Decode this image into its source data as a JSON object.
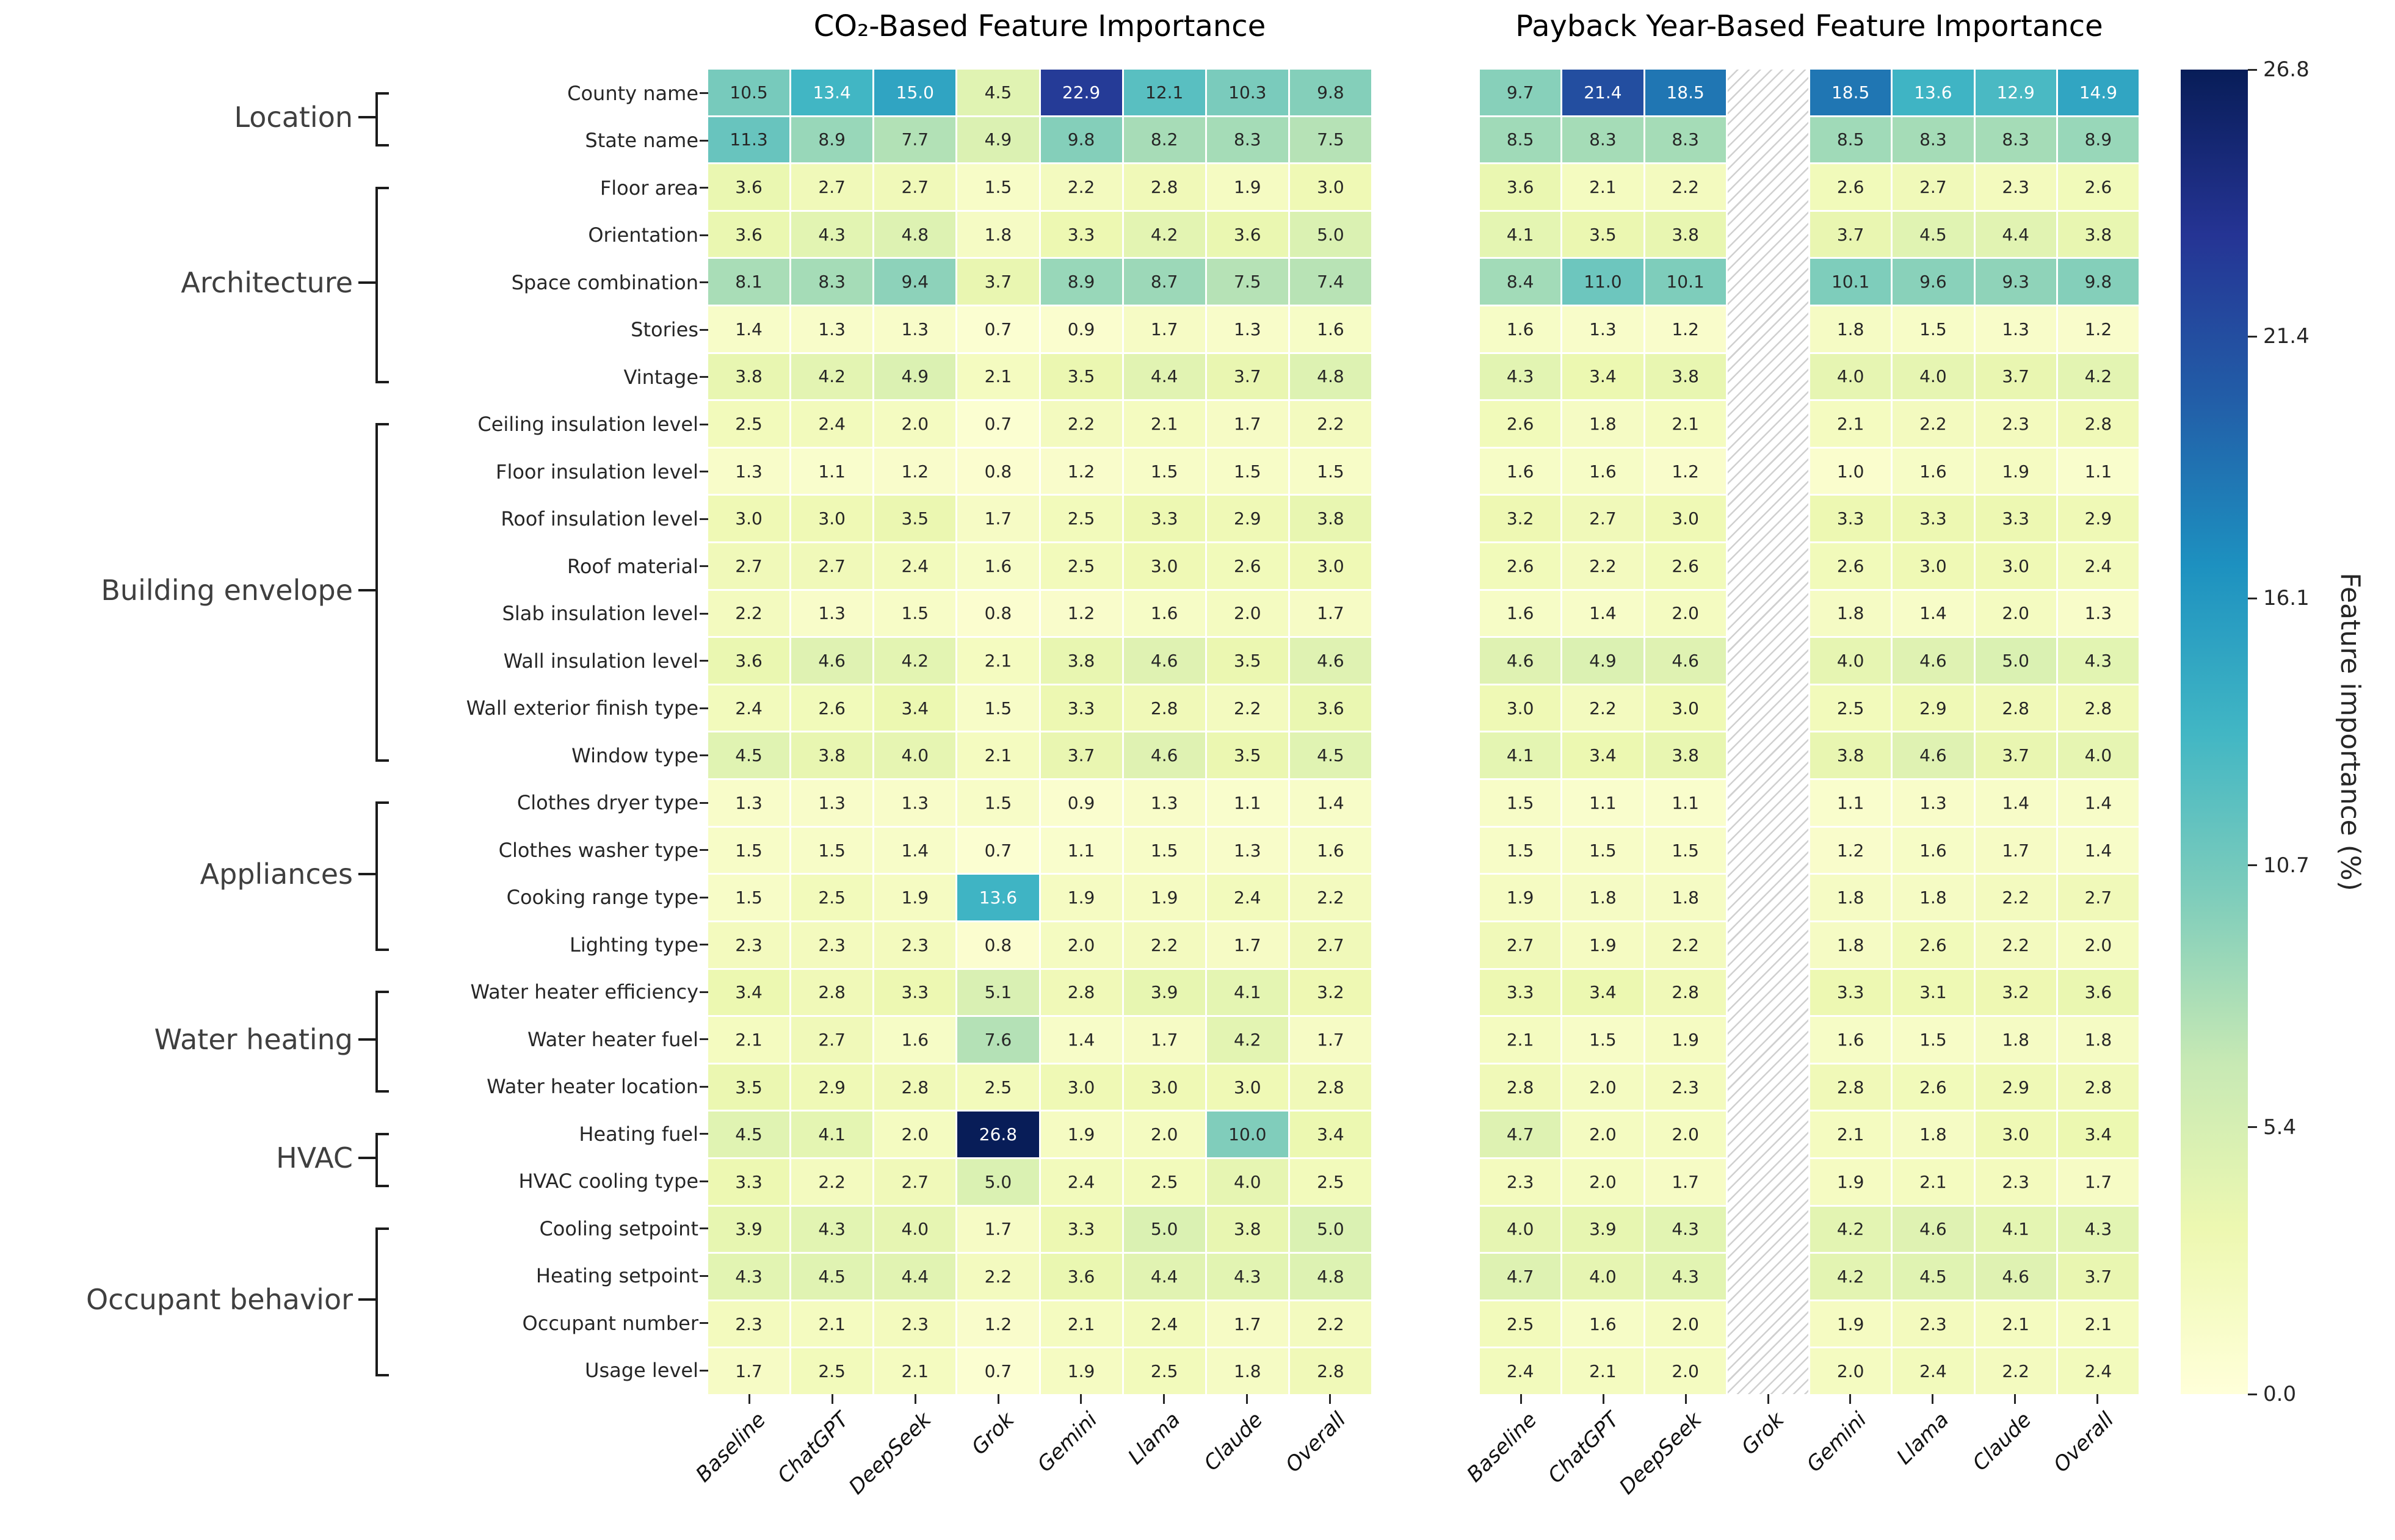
{
  "figure": {
    "background": "#ffffff"
  },
  "columns": [
    "Baseline",
    "ChatGPT",
    "DeepSeek",
    "Grok",
    "Gemini",
    "Llama",
    "Claude",
    "Overall"
  ],
  "rows": [
    "County name",
    "State name",
    "Floor area",
    "Orientation",
    "Space combination",
    "Stories",
    "Vintage",
    "Ceiling insulation level",
    "Floor insulation level",
    "Roof insulation level",
    "Roof material",
    "Slab insulation level",
    "Wall insulation level",
    "Wall exterior finish type",
    "Window type",
    "Clothes dryer type",
    "Clothes washer type",
    "Cooking range type",
    "Lighting type",
    "Water heater efficiency",
    "Water heater fuel",
    "Water heater location",
    "Heating fuel",
    "HVAC cooling type",
    "Cooling setpoint",
    "Heating setpoint",
    "Occupant number",
    "Usage level"
  ],
  "groups": [
    {
      "label": "Location",
      "start": 0,
      "end": 1
    },
    {
      "label": "Architecture",
      "start": 2,
      "end": 6
    },
    {
      "label": "Building envelope",
      "start": 7,
      "end": 14
    },
    {
      "label": "Appliances",
      "start": 15,
      "end": 18
    },
    {
      "label": "Water heating",
      "start": 19,
      "end": 21
    },
    {
      "label": "HVAC",
      "start": 22,
      "end": 23
    },
    {
      "label": "Occupant behavior",
      "start": 24,
      "end": 27
    }
  ],
  "chart_data": [
    {
      "type": "heatmap",
      "title": "CO₂-Based Feature Importance",
      "x_labels": [
        "Baseline",
        "ChatGPT",
        "DeepSeek",
        "Grok",
        "Gemini",
        "Llama",
        "Claude",
        "Overall"
      ],
      "y_labels_shared": true,
      "values": [
        [
          10.5,
          13.4,
          15.0,
          4.5,
          22.9,
          12.1,
          10.3,
          9.8
        ],
        [
          11.3,
          8.9,
          7.7,
          4.9,
          9.8,
          8.2,
          8.3,
          7.5
        ],
        [
          3.6,
          2.7,
          2.7,
          1.5,
          2.2,
          2.8,
          1.9,
          3.0
        ],
        [
          3.6,
          4.3,
          4.8,
          1.8,
          3.3,
          4.2,
          3.6,
          5.0
        ],
        [
          8.1,
          8.3,
          9.4,
          3.7,
          8.9,
          8.7,
          7.5,
          7.4
        ],
        [
          1.4,
          1.3,
          1.3,
          0.7,
          0.9,
          1.7,
          1.3,
          1.6
        ],
        [
          3.8,
          4.2,
          4.9,
          2.1,
          3.5,
          4.4,
          3.7,
          4.8
        ],
        [
          2.5,
          2.4,
          2.0,
          0.7,
          2.2,
          2.1,
          1.7,
          2.2
        ],
        [
          1.3,
          1.1,
          1.2,
          0.8,
          1.2,
          1.5,
          1.5,
          1.5
        ],
        [
          3.0,
          3.0,
          3.5,
          1.7,
          2.5,
          3.3,
          2.9,
          3.8
        ],
        [
          2.7,
          2.7,
          2.4,
          1.6,
          2.5,
          3.0,
          2.6,
          3.0
        ],
        [
          2.2,
          1.3,
          1.5,
          0.8,
          1.2,
          1.6,
          2.0,
          1.7
        ],
        [
          3.6,
          4.6,
          4.2,
          2.1,
          3.8,
          4.6,
          3.5,
          4.6
        ],
        [
          2.4,
          2.6,
          3.4,
          1.5,
          3.3,
          2.8,
          2.2,
          3.6
        ],
        [
          4.5,
          3.8,
          4.0,
          2.1,
          3.7,
          4.6,
          3.5,
          4.5
        ],
        [
          1.3,
          1.3,
          1.3,
          1.5,
          0.9,
          1.3,
          1.1,
          1.4
        ],
        [
          1.5,
          1.5,
          1.4,
          0.7,
          1.1,
          1.5,
          1.3,
          1.6
        ],
        [
          1.5,
          2.5,
          1.9,
          13.6,
          1.9,
          1.9,
          2.4,
          2.2
        ],
        [
          2.3,
          2.3,
          2.3,
          0.8,
          2.0,
          2.2,
          1.7,
          2.7
        ],
        [
          3.4,
          2.8,
          3.3,
          5.1,
          2.8,
          3.9,
          4.1,
          3.2
        ],
        [
          2.1,
          2.7,
          1.6,
          7.6,
          1.4,
          1.7,
          4.2,
          1.7
        ],
        [
          3.5,
          2.9,
          2.8,
          2.5,
          3.0,
          3.0,
          3.0,
          2.8
        ],
        [
          4.5,
          4.1,
          2.0,
          26.8,
          1.9,
          2.0,
          10.0,
          3.4
        ],
        [
          3.3,
          2.2,
          2.7,
          5.0,
          2.4,
          2.5,
          4.0,
          2.5
        ],
        [
          3.9,
          4.3,
          4.0,
          1.7,
          3.3,
          5.0,
          3.8,
          5.0
        ],
        [
          4.3,
          4.5,
          4.4,
          2.2,
          3.6,
          4.4,
          4.3,
          4.8
        ],
        [
          2.3,
          2.1,
          2.3,
          1.2,
          2.1,
          2.4,
          1.7,
          2.2
        ],
        [
          1.7,
          2.5,
          2.1,
          0.7,
          1.9,
          2.5,
          1.8,
          2.8
        ]
      ]
    },
    {
      "type": "heatmap",
      "title": "Payback Year-Based Feature Importance",
      "x_labels": [
        "Baseline",
        "ChatGPT",
        "DeepSeek",
        "Grok",
        "Gemini",
        "Llama",
        "Claude",
        "Overall"
      ],
      "missing_column_label": "Grok",
      "missing_column_index": 3,
      "values": [
        [
          9.7,
          21.4,
          18.5,
          null,
          18.5,
          13.6,
          12.9,
          14.9
        ],
        [
          8.5,
          8.3,
          8.3,
          null,
          8.5,
          8.3,
          8.3,
          8.9
        ],
        [
          3.6,
          2.1,
          2.2,
          null,
          2.6,
          2.7,
          2.3,
          2.6
        ],
        [
          4.1,
          3.5,
          3.8,
          null,
          3.7,
          4.5,
          4.4,
          3.8
        ],
        [
          8.4,
          11.0,
          10.1,
          null,
          10.1,
          9.6,
          9.3,
          9.8
        ],
        [
          1.6,
          1.3,
          1.2,
          null,
          1.8,
          1.5,
          1.3,
          1.2
        ],
        [
          4.3,
          3.4,
          3.8,
          null,
          4.0,
          4.0,
          3.7,
          4.2
        ],
        [
          2.6,
          1.8,
          2.1,
          null,
          2.1,
          2.2,
          2.3,
          2.8
        ],
        [
          1.6,
          1.6,
          1.2,
          null,
          1.0,
          1.6,
          1.9,
          1.1
        ],
        [
          3.2,
          2.7,
          3.0,
          null,
          3.3,
          3.3,
          3.3,
          2.9
        ],
        [
          2.6,
          2.2,
          2.6,
          null,
          2.6,
          3.0,
          3.0,
          2.4
        ],
        [
          1.6,
          1.4,
          2.0,
          null,
          1.8,
          1.4,
          2.0,
          1.3
        ],
        [
          4.6,
          4.9,
          4.6,
          null,
          4.0,
          4.6,
          5.0,
          4.3
        ],
        [
          3.0,
          2.2,
          3.0,
          null,
          2.5,
          2.9,
          2.8,
          2.8
        ],
        [
          4.1,
          3.4,
          3.8,
          null,
          3.8,
          4.6,
          3.7,
          4.0
        ],
        [
          1.5,
          1.1,
          1.1,
          null,
          1.1,
          1.3,
          1.4,
          1.4
        ],
        [
          1.5,
          1.5,
          1.5,
          null,
          1.2,
          1.6,
          1.7,
          1.4
        ],
        [
          1.9,
          1.8,
          1.8,
          null,
          1.8,
          1.8,
          2.2,
          2.7
        ],
        [
          2.7,
          1.9,
          2.2,
          null,
          1.8,
          2.6,
          2.2,
          2.0
        ],
        [
          3.3,
          3.4,
          2.8,
          null,
          3.3,
          3.1,
          3.2,
          3.6
        ],
        [
          2.1,
          1.5,
          1.9,
          null,
          1.6,
          1.5,
          1.8,
          1.8
        ],
        [
          2.8,
          2.0,
          2.3,
          null,
          2.8,
          2.6,
          2.9,
          2.8
        ],
        [
          4.7,
          2.0,
          2.0,
          null,
          2.1,
          1.8,
          3.0,
          3.4
        ],
        [
          2.3,
          2.0,
          1.7,
          null,
          1.9,
          2.1,
          2.3,
          1.7
        ],
        [
          4.0,
          3.9,
          4.3,
          null,
          4.2,
          4.6,
          4.1,
          4.3
        ],
        [
          4.7,
          4.0,
          4.3,
          null,
          4.2,
          4.5,
          4.6,
          3.7
        ],
        [
          2.5,
          1.6,
          2.0,
          null,
          1.9,
          2.3,
          2.1,
          2.1
        ],
        [
          2.4,
          2.1,
          2.0,
          null,
          2.0,
          2.4,
          2.2,
          2.4
        ]
      ]
    }
  ],
  "colorbar": {
    "label": "Feature importance (%)",
    "vmin": 0,
    "vmax": 26.8,
    "ticks": [
      26.8,
      21.4,
      16.1,
      10.7,
      5.4,
      0.0
    ],
    "colormap": "YlGnBu",
    "stops": [
      "#ffffd9",
      "#edf8b1",
      "#c7e9b4",
      "#7fcdbb",
      "#41b6c4",
      "#1d91c0",
      "#225ea8",
      "#253494",
      "#081d58"
    ]
  }
}
